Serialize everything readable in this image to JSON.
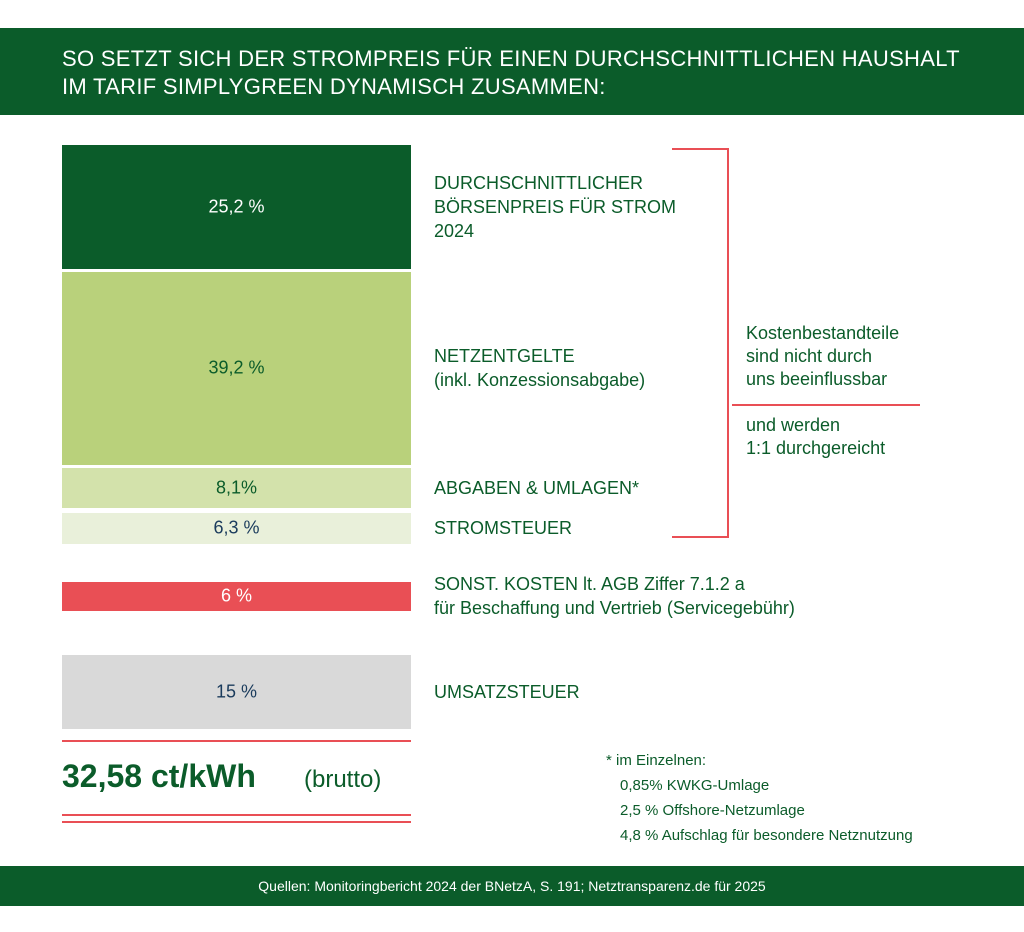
{
  "chart_data": {
    "type": "bar",
    "title": "SO SETZT SICH DER STROMPREIS FÜR EINEN DURCHSCHNITTLICHEN HAUSHALT\nIM TARIF SIMPLYGREEN DYNAMISCH ZUSAMMEN:",
    "categories": [
      "DURCHSCHNITTLICHER\nBÖRSENPREIS FÜR STROM\n2024",
      "NETZENTGELTE\n(inkl. Konzessionsabgabe)",
      "ABGABEN & UMLAGEN*",
      "STROMSTEUER",
      "SONST. KOSTEN lt. AGB Ziffer 7.1.2 a\nfür Beschaffung und Vertrieb (Servicegebühr)",
      "UMSATZSTEUER"
    ],
    "values": [
      25.2,
      39.2,
      8.1,
      6.3,
      6,
      15
    ],
    "value_labels": [
      "25,2 %",
      "39,2 %",
      "8,1%",
      "6,3 %",
      "6 %",
      "15 %"
    ],
    "colors": [
      "#0b5c2a",
      "#b9d17b",
      "#d3e2ab",
      "#e9f0da",
      "#e94f55",
      "#d9d9d9"
    ],
    "annotations": [
      "Kostenbestandteile\nsind nicht durch\nuns beeinflussbar",
      "und werden\n1:1 durchgereicht"
    ],
    "total": "32,58 ct/kWh",
    "total_suffix": "(brutto)",
    "footnote": [
      "* im Einzelnen:",
      "0,85% KWKG-Umlage",
      "2,5 % Offshore-Netzumlage",
      "4,8 % Aufschlag für besondere Netznutzung"
    ],
    "source": "Quellen: Monitoringbericht 2024 der BNetzA, S. 191; Netztransparenz.de für 2025"
  }
}
